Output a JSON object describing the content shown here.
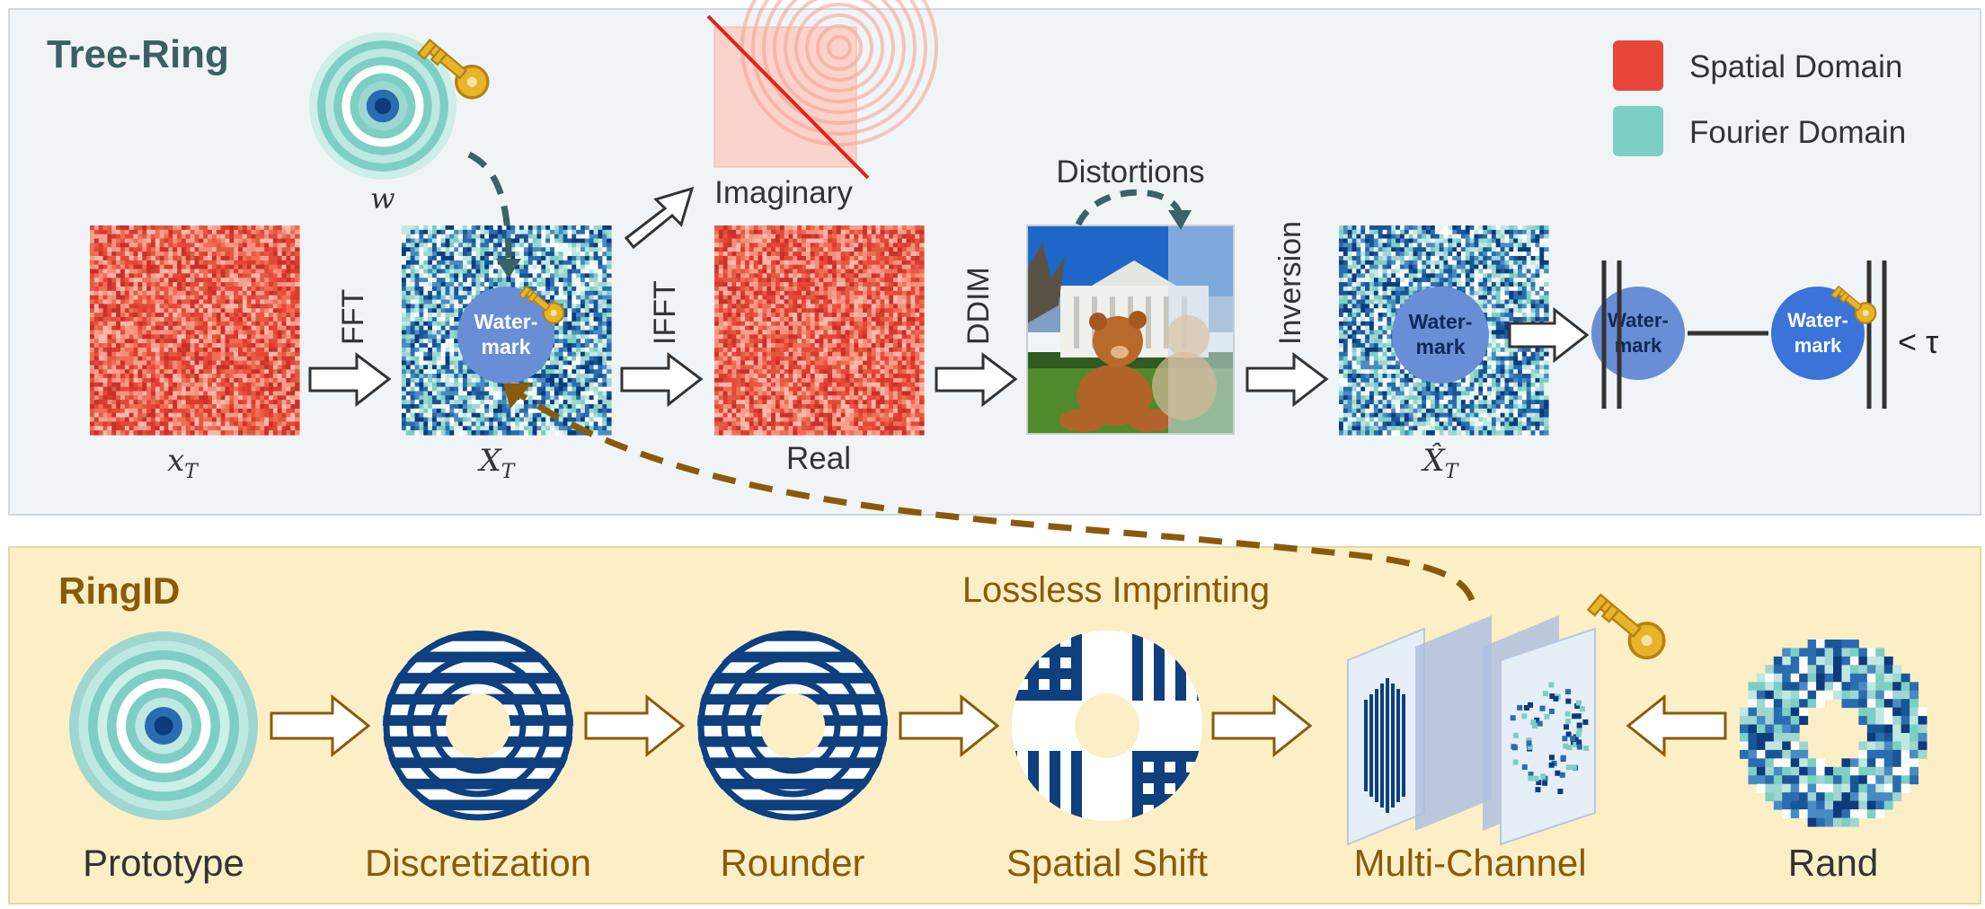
{
  "panels": {
    "tree_ring_title": "Tree-Ring",
    "ringid_title": "RingID"
  },
  "legend": {
    "spatial_label": "Spatial Domain",
    "fourier_label": "Fourier Domain",
    "spatial_color": "#e8463a",
    "fourier_color": "#7ccfc2"
  },
  "tree_ring": {
    "w_label": "w",
    "xT_label": "x",
    "XT_label": "X",
    "sub_T": "T",
    "XT_hat_label": "X̂",
    "imaginary_label": "Imaginary",
    "real_label": "Real",
    "fft_label": "FFT",
    "ifft_label": "IFFT",
    "ddim_label": "DDIM",
    "inversion_label": "Inversion",
    "distortions_label": "Distortions",
    "watermark_line1": "Water-",
    "watermark_line2": "mark",
    "threshold_label": "< τ"
  },
  "ringid": {
    "lossless_label": "Lossless Imprinting",
    "prototype_label": "Prototype",
    "discretization_label": "Discretization",
    "rounder_label": "Rounder",
    "spatial_shift_label": "Spatial Shift",
    "multichannel_label": "Multi-Channel",
    "rand_label": "Rand"
  },
  "colors": {
    "tree_panel_bg": "#f1f4f6",
    "ringid_panel_bg": "#fcefc6",
    "tree_title": "#3d5f63",
    "ringid_title": "#8a5a0b",
    "navy": "#0e3f7e",
    "brown_arrow": "#8a5a0b",
    "teal_arrow": "#3b6266",
    "watermark_circle": "#6a8ed6"
  }
}
